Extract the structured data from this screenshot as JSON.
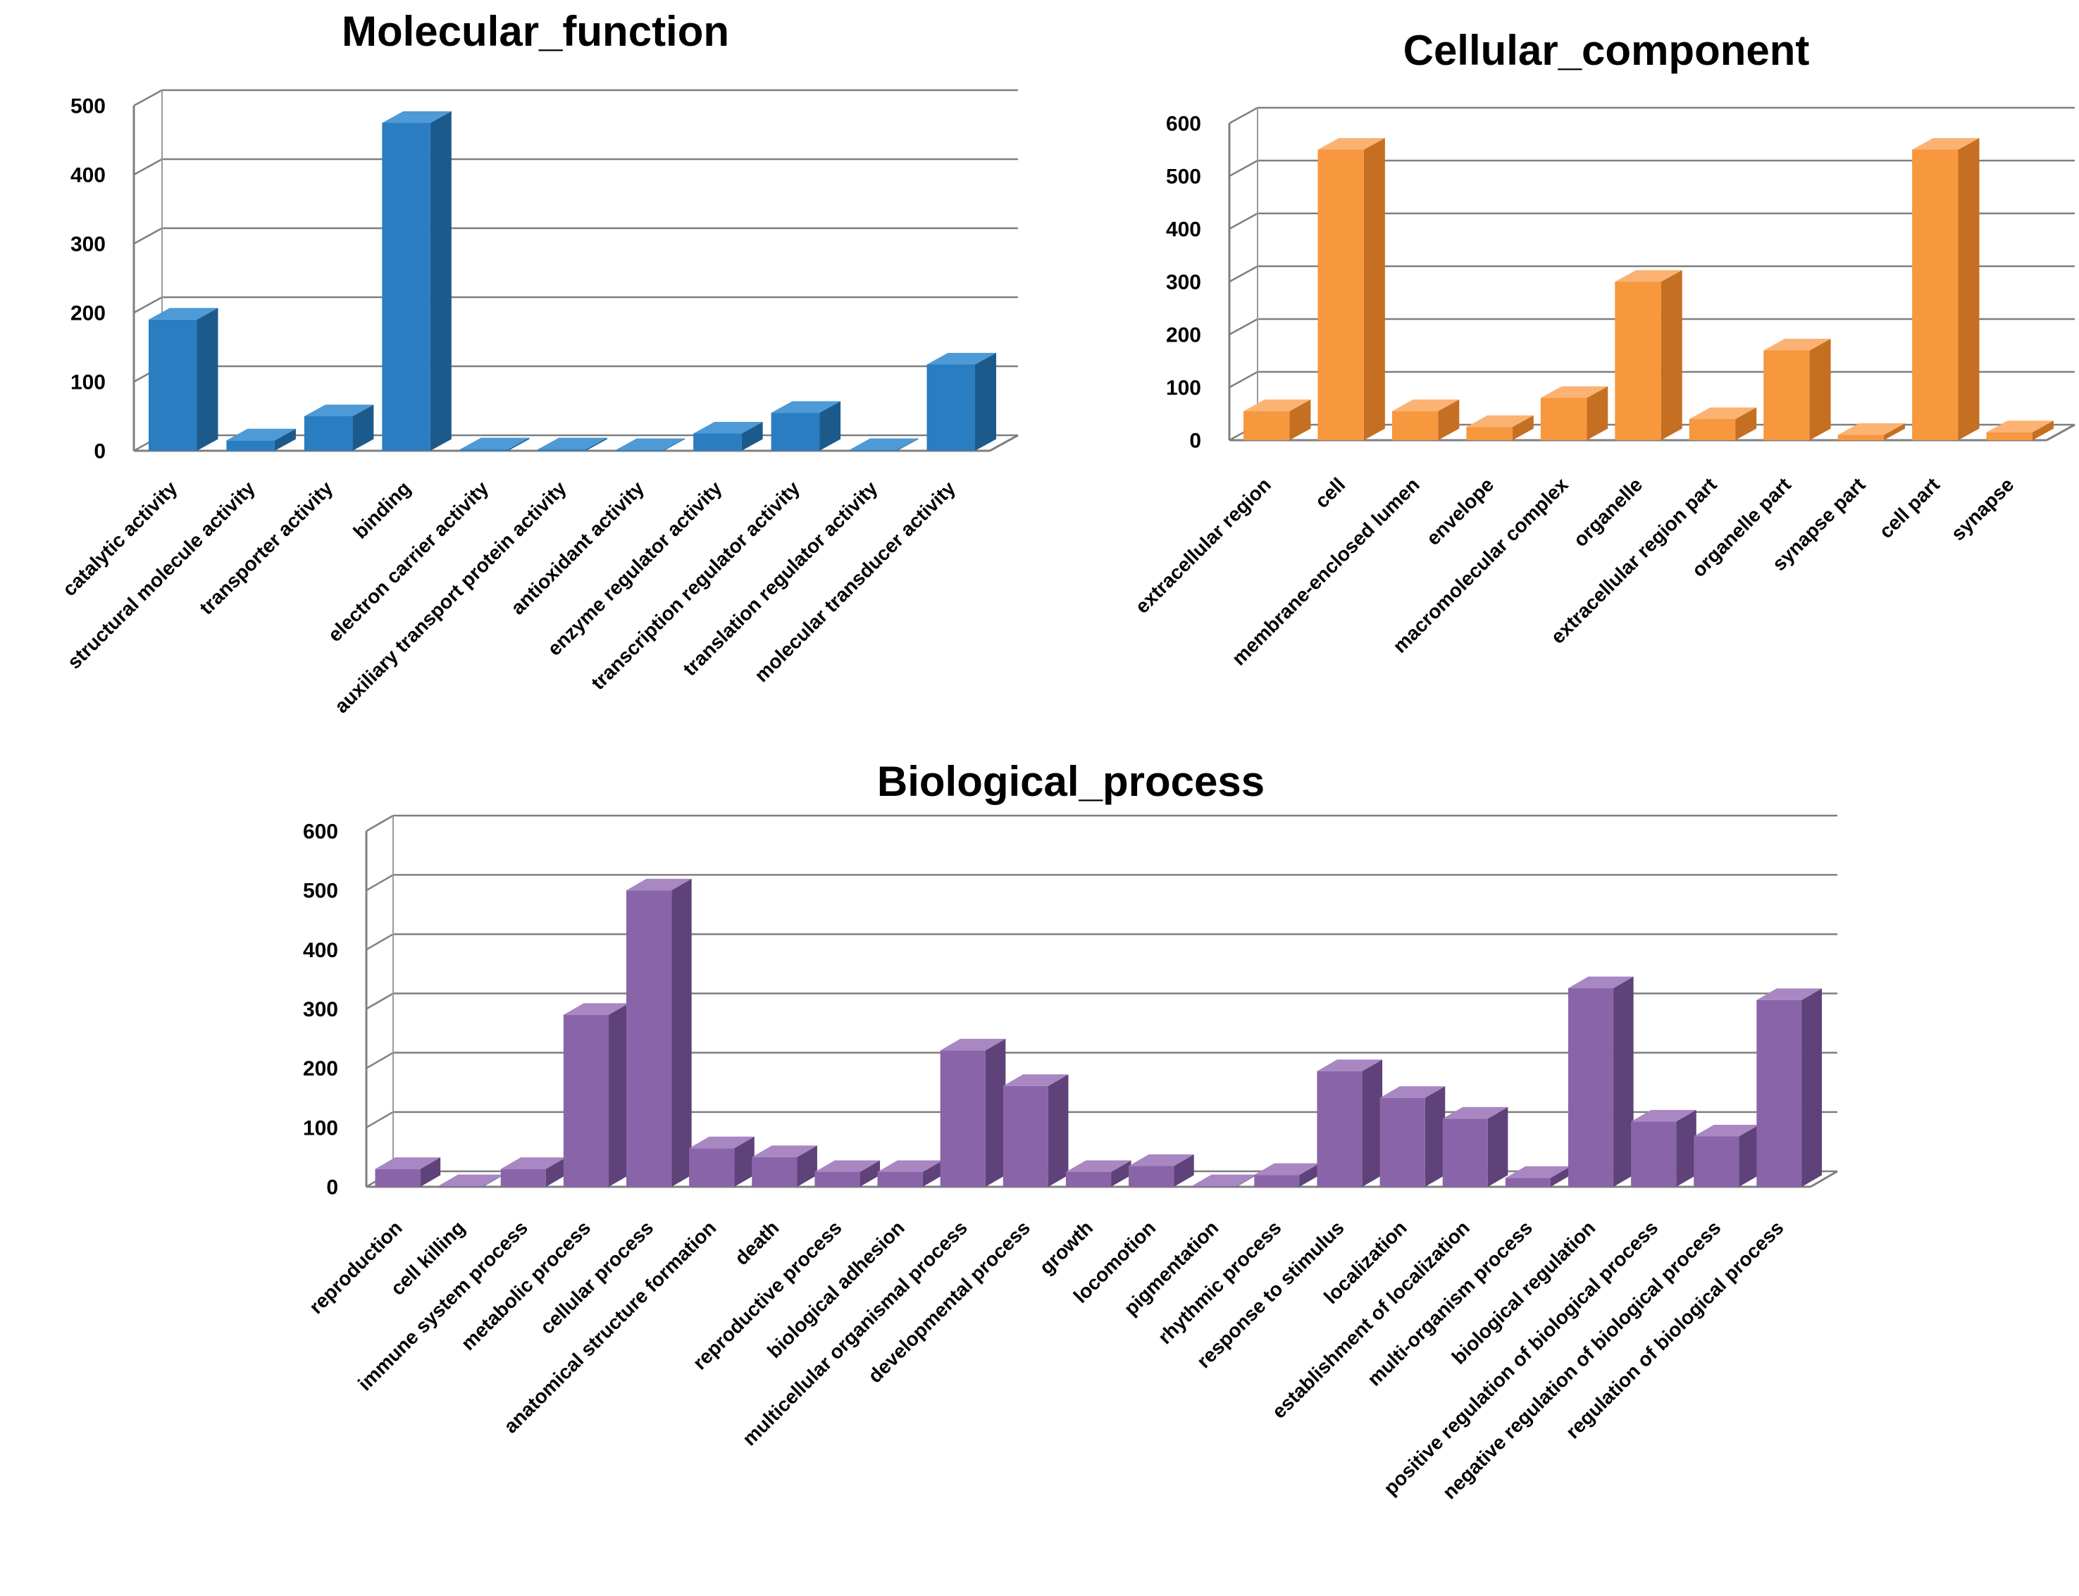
{
  "chart_data": [
    {
      "id": "molecular",
      "type": "bar",
      "title": "Molecular_function",
      "categories": [
        "catalytic activity",
        "structural molecule activity",
        "transporter activity",
        "binding",
        "electron carrier activity",
        "auxiliary transport protein activity",
        "antioxidant activity",
        "enzyme regulator activity",
        "transcription regulator activity",
        "translation regulator activity",
        "molecular transducer activity"
      ],
      "values": [
        190,
        15,
        50,
        475,
        2,
        2,
        1,
        25,
        55,
        1,
        125
      ],
      "yticks": [
        0,
        100,
        200,
        300,
        400,
        500
      ],
      "ylim": [
        0,
        500
      ],
      "grid": true,
      "legend": "none",
      "colors": {
        "front": "#2a7dc1",
        "side": "#1d5a8c",
        "top": "#4d9ad6"
      }
    },
    {
      "id": "cellular",
      "type": "bar",
      "title": "Cellular_component",
      "categories": [
        "extracellular region",
        "cell",
        "membrane-enclosed lumen",
        "envelope",
        "macromolecular complex",
        "organelle",
        "extracellular region part",
        "organelle part",
        "synapse part",
        "cell part",
        "synapse"
      ],
      "values": [
        55,
        550,
        55,
        25,
        80,
        300,
        40,
        170,
        10,
        550,
        15
      ],
      "yticks": [
        0,
        100,
        200,
        300,
        400,
        500,
        600
      ],
      "ylim": [
        0,
        600
      ],
      "grid": true,
      "legend": "none",
      "colors": {
        "front": "#f7973e",
        "side": "#c46f22",
        "top": "#fbb272"
      }
    },
    {
      "id": "biological",
      "type": "bar",
      "title": "Biological_process",
      "categories": [
        "reproduction",
        "cell killing",
        "immune system process",
        "metabolic process",
        "cellular process",
        "anatomical structure formation",
        "death",
        "reproductive process",
        "biological  adhesion",
        "multicellular organismal process",
        "developmental process",
        "growth",
        "locomotion",
        "pigmentation",
        "rhythmic process",
        "response to stimulus",
        "localization",
        "establishment of localization",
        "multi-organism process",
        "biological  regulation",
        "positive regulation of biological  process",
        "negative regulation of biological  process",
        "regulation of biological  process"
      ],
      "values": [
        30,
        1,
        30,
        290,
        500,
        65,
        50,
        25,
        25,
        230,
        170,
        25,
        35,
        1,
        20,
        195,
        150,
        115,
        15,
        335,
        110,
        85,
        315
      ],
      "yticks": [
        0,
        100,
        200,
        300,
        400,
        500,
        600
      ],
      "ylim": [
        0,
        600
      ],
      "grid": true,
      "legend": "none",
      "colors": {
        "front": "#8a64a8",
        "side": "#5e4279",
        "top": "#a987c2"
      }
    }
  ]
}
